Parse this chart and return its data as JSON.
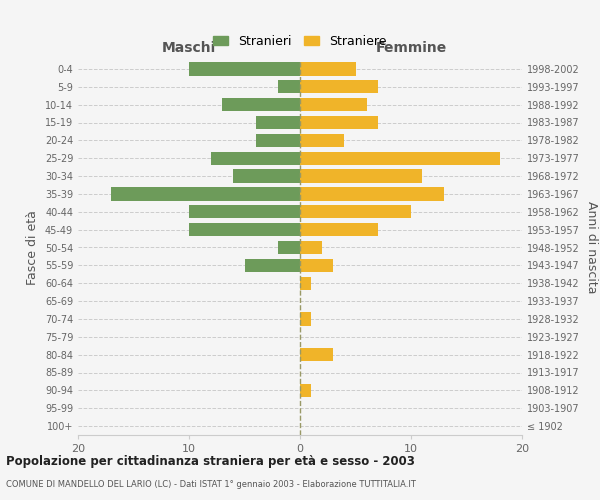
{
  "age_groups": [
    "100+",
    "95-99",
    "90-94",
    "85-89",
    "80-84",
    "75-79",
    "70-74",
    "65-69",
    "60-64",
    "55-59",
    "50-54",
    "45-49",
    "40-44",
    "35-39",
    "30-34",
    "25-29",
    "20-24",
    "15-19",
    "10-14",
    "5-9",
    "0-4"
  ],
  "birth_years": [
    "≤ 1902",
    "1903-1907",
    "1908-1912",
    "1913-1917",
    "1918-1922",
    "1923-1927",
    "1928-1932",
    "1933-1937",
    "1938-1942",
    "1943-1947",
    "1948-1952",
    "1953-1957",
    "1958-1962",
    "1963-1967",
    "1968-1972",
    "1973-1977",
    "1978-1982",
    "1983-1987",
    "1988-1992",
    "1993-1997",
    "1998-2002"
  ],
  "maschi": [
    0,
    0,
    0,
    0,
    0,
    0,
    0,
    0,
    0,
    5,
    2,
    10,
    10,
    17,
    6,
    8,
    4,
    4,
    7,
    2,
    10
  ],
  "femmine": [
    0,
    0,
    1,
    0,
    3,
    0,
    1,
    0,
    1,
    3,
    2,
    7,
    10,
    13,
    11,
    18,
    4,
    7,
    6,
    7,
    5
  ],
  "color_maschi": "#6d9b5a",
  "color_femmine": "#f0b429",
  "background_color": "#f5f5f5",
  "grid_color": "#cccccc",
  "title": "Popolazione per cittadinanza straniera per età e sesso - 2003",
  "subtitle": "COMUNE DI MANDELLO DEL LARIO (LC) - Dati ISTAT 1° gennaio 2003 - Elaborazione TUTTITALIA.IT",
  "xlabel_left": "Maschi",
  "xlabel_right": "Femmine",
  "ylabel_left": "Fasce di età",
  "ylabel_right": "Anni di nascita",
  "legend_maschi": "Stranieri",
  "legend_femmine": "Straniere",
  "xlim": 20
}
